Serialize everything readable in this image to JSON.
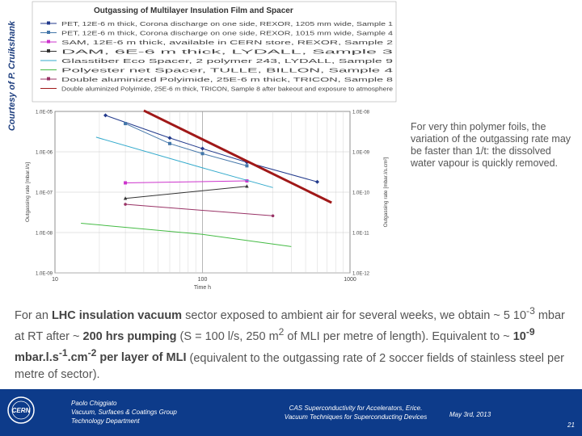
{
  "credit": "Courtesy of P. Cruikshank",
  "chart_data": {
    "type": "line",
    "title": "Outgassing of Multilayer Insulation Film and Spacer",
    "xlabel": "Time h",
    "ylabel_left": "Outgassing rate [mbar.l/s]",
    "ylabel_right": "Outgassing rate [mbar.l/s.cm²]",
    "log_x": true,
    "log_y": true,
    "xlim": [
      10,
      1000
    ],
    "ylim": [
      1e-09,
      1e-05
    ],
    "xticks": [
      "10",
      "100",
      "1000"
    ],
    "yticks_left": [
      "1.0E-05",
      "1.0E-06",
      "1.0E-07",
      "1.0E-08",
      "1.0E-09"
    ],
    "yticks_right": [
      "1.0E-08",
      "1.0E-09",
      "1.0E-10",
      "1.0E-11",
      "1.0E-12"
    ],
    "legend": [
      "PET, 12E-6 m thick, Corona discharge on one side, REXOR, 1205 mm wide, Sample 1",
      "PET, 12E-6 m thick, Corona discharge on one side, REXOR, 1015 mm wide, Sample 4",
      "SAM, 12E-6 m thick, available in CERN store, REXOR, Sample 2",
      "DAM, 6E-6 m thick, LYDALL, Sample 3",
      "Glasstiber Eco Spacer, 2 polymer 243, LYDALL, Sample 9",
      "Polyester net Spacer, TULLE, BILLON, Sample 4",
      "Double aluminized Polyimide, 25E-6 m thick, TRICON, Sample 8",
      "Double aluminized Polyimide, 25E-6 m thick, TRICON, Sample 8 after bakeout and exposure to atmosphere"
    ],
    "series": [
      {
        "color": "#223a8c",
        "marker": "diamond",
        "x": [
          22,
          60,
          100,
          200,
          600
        ],
        "y": [
          8e-06,
          2.2e-06,
          1.2e-06,
          5.5e-07,
          1.8e-07
        ]
      },
      {
        "color": "#4477aa",
        "marker": "square",
        "x": [
          30,
          60,
          100,
          200
        ],
        "y": [
          5e-06,
          1.6e-06,
          9e-07,
          4.5e-07
        ]
      },
      {
        "color": "#cc33cc",
        "marker": "square",
        "x": [
          30,
          200
        ],
        "y": [
          1.7e-07,
          1.9e-07
        ]
      },
      {
        "color": "#333333",
        "marker": "triangle",
        "x": [
          30,
          200
        ],
        "y": [
          7e-08,
          1.4e-07
        ]
      },
      {
        "color": "#33aacc",
        "marker": "none",
        "x": [
          19,
          100,
          300
        ],
        "y": [
          2.3e-06,
          4e-07,
          1.3e-07
        ]
      },
      {
        "color": "#44bb44",
        "marker": "none",
        "x": [
          15,
          100,
          400
        ],
        "y": [
          1.7e-08,
          9e-09,
          4.5e-09
        ]
      },
      {
        "color": "#993366",
        "marker": "circle",
        "x": [
          30,
          300
        ],
        "y": [
          5e-08,
          2.6e-08
        ]
      },
      {
        "color": "#a01818",
        "marker": "none",
        "x": [
          40,
          750
        ],
        "y": [
          1.05e-05,
          5.5e-08
        ]
      }
    ]
  },
  "note": "For very thin polymer foils, the variation of the outgassing rate may be faster than 1/t: the dissolved water vapour is quickly removed.",
  "para": {
    "p1": "For an ",
    "b1": "LHC insulation vacuum",
    "p2": " sector exposed to ambient air for several weeks, we obtain ~ 5 10",
    "sup1": "-3",
    "p3": " mbar at RT after ~ ",
    "b2": "200 hrs pumping",
    "p4": " (S = 100 l/s, 250 m",
    "sup2": "2",
    "p5": " of MLI per metre of length). Equivalent to ~ ",
    "b3a": "10",
    "b3sup1": "-9",
    "b3b": " mbar.l.s",
    "b3sup2": "-1",
    "b3c": ".cm",
    "b3sup3": "-2",
    "b3d": " per layer of MLI",
    "p6": "  (equivalent to the outgassing rate of 2 soccer fields of stainless steel per metre of sector)."
  },
  "footer": {
    "logo_text": "CERN",
    "author": "Paolo Chiggiato",
    "group": "Vacuum, Surfaces & Coatings Group",
    "department": "Technology Department",
    "event": "CAS Superconductivity for Accelerators, Erice.",
    "course": "Vacuum Techniques for Superconducting Devices",
    "date": "May 3rd, 2013",
    "page": "21",
    "bg_color": "#0d3b8a"
  }
}
